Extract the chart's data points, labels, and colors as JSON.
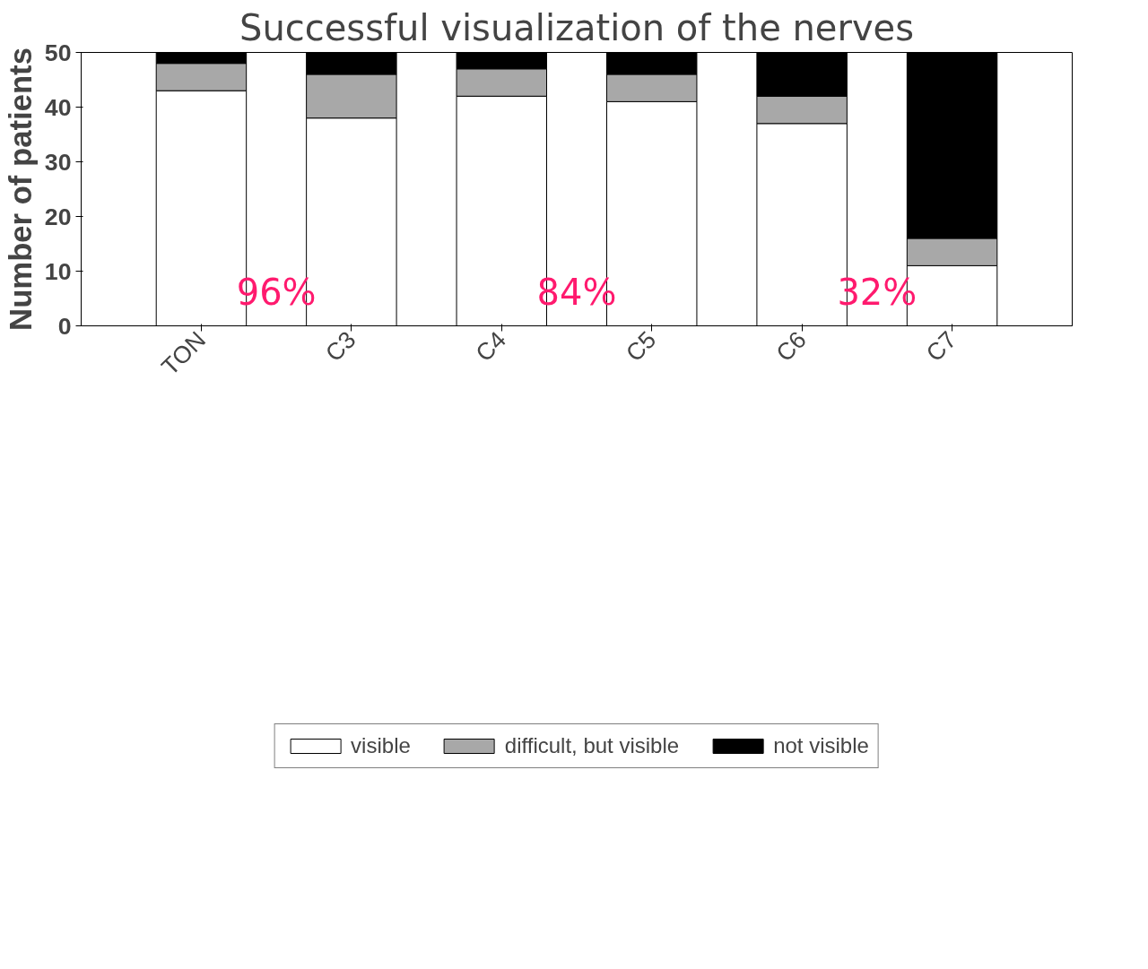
{
  "chart_data": {
    "type": "bar",
    "stacked": true,
    "title": "Successful visualization of the nerves",
    "ylabel": "Number of patients",
    "categories": [
      "TON",
      "C3",
      "C4",
      "C5",
      "C6",
      "C7"
    ],
    "series": [
      {
        "name": "visible",
        "color": "#ffffff",
        "values": [
          43,
          38,
          42,
          41,
          37,
          11
        ]
      },
      {
        "name": "difficult, but visible",
        "color": "#a8a8a8",
        "values": [
          5,
          8,
          5,
          5,
          5,
          5
        ]
      },
      {
        "name": "not visible",
        "color": "#000000",
        "values": [
          2,
          4,
          3,
          4,
          8,
          34
        ]
      }
    ],
    "ylim": [
      0,
      50
    ],
    "yticks": [
      0,
      10,
      20,
      30,
      40,
      50
    ],
    "grid": false,
    "legend": "bottom",
    "annotations": [
      "96%",
      "84%",
      "32%"
    ]
  }
}
